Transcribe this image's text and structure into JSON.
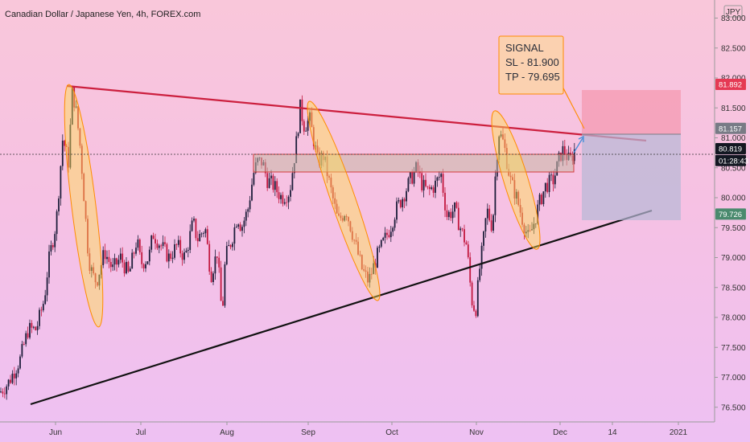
{
  "chart_data": {
    "type": "candlestick",
    "title": "Canadian Dollar / Japanese Yen, 4h, FOREX.com",
    "currency_label": "JPY",
    "y_ticks": [
      "83.000",
      "82.500",
      "82.000",
      "81.500",
      "81.000",
      "80.500",
      "80.000",
      "79.500",
      "79.000",
      "78.500",
      "78.000",
      "77.500",
      "77.000",
      "76.500"
    ],
    "ylim": [
      76.4,
      83.1
    ],
    "x_ticks": [
      "Jun",
      "Jul",
      "Aug",
      "Sep",
      "Oct",
      "Nov",
      "Dec",
      "14",
      "2021"
    ],
    "price_labels": [
      {
        "text": "81.892",
        "value": 81.892,
        "color": "#e53954"
      },
      {
        "text": "81.157",
        "value": 81.157,
        "color": "#787b86"
      },
      {
        "text": "80.819",
        "value": 80.819,
        "color": "#131722"
      },
      {
        "text": "01:28:43",
        "value": 80.62,
        "color": "#131722"
      },
      {
        "text": "79.726",
        "value": 79.726,
        "color": "#4a8a6e"
      }
    ],
    "signal": {
      "lines": [
        "SIGNAL",
        "SL - 81.900",
        "TP - 79.695"
      ]
    },
    "series": [
      {
        "type": "price",
        "path": [
          [
            0,
            76.75
          ],
          [
            10,
            76.9
          ],
          [
            25,
            77.3
          ],
          [
            35,
            77.8
          ],
          [
            45,
            77.8
          ],
          [
            55,
            78.3
          ],
          [
            60,
            78.9
          ],
          [
            70,
            79.6
          ],
          [
            78,
            81.0
          ],
          [
            85,
            80.6
          ],
          [
            90,
            81.8
          ],
          [
            95,
            81.4
          ],
          [
            100,
            80.8
          ],
          [
            105,
            79.9
          ],
          [
            110,
            79.0
          ],
          [
            115,
            78.7
          ],
          [
            120,
            78.6
          ],
          [
            130,
            79.1
          ],
          [
            140,
            78.8
          ],
          [
            150,
            79.0
          ],
          [
            160,
            78.7
          ],
          [
            170,
            79.3
          ],
          [
            175,
            78.9
          ],
          [
            185,
            79.0
          ],
          [
            190,
            79.4
          ],
          [
            200,
            79.2
          ],
          [
            210,
            79.0
          ],
          [
            220,
            79.2
          ],
          [
            230,
            79.0
          ],
          [
            240,
            79.6
          ],
          [
            245,
            79.3
          ],
          [
            255,
            79.5
          ],
          [
            262,
            78.7
          ],
          [
            270,
            79.1
          ],
          [
            276,
            78.0
          ],
          [
            280,
            79.0
          ],
          [
            288,
            79.3
          ],
          [
            295,
            79.7
          ],
          [
            300,
            79.5
          ],
          [
            308,
            79.8
          ],
          [
            315,
            80.4
          ],
          [
            320,
            80.6
          ],
          [
            326,
            80.6
          ],
          [
            332,
            80.3
          ],
          [
            340,
            80.2
          ],
          [
            350,
            80.0
          ],
          [
            360,
            80.1
          ],
          [
            368,
            80.9
          ],
          [
            373,
            81.5
          ],
          [
            378,
            81.2
          ],
          [
            385,
            81.3
          ],
          [
            395,
            80.6
          ],
          [
            402,
            80.7
          ],
          [
            410,
            80.2
          ],
          [
            420,
            79.6
          ],
          [
            430,
            79.8
          ],
          [
            440,
            79.3
          ],
          [
            450,
            78.8
          ],
          [
            458,
            78.6
          ],
          [
            468,
            79.0
          ],
          [
            478,
            79.3
          ],
          [
            485,
            79.5
          ],
          [
            492,
            79.8
          ],
          [
            500,
            80.0
          ],
          [
            510,
            80.3
          ],
          [
            518,
            80.5
          ],
          [
            525,
            80.2
          ],
          [
            532,
            80.1
          ],
          [
            540,
            80.2
          ],
          [
            548,
            80.4
          ],
          [
            555,
            79.7
          ],
          [
            565,
            79.8
          ],
          [
            572,
            79.5
          ],
          [
            580,
            79.2
          ],
          [
            586,
            78.3
          ],
          [
            591,
            78.1
          ],
          [
            596,
            78.8
          ],
          [
            600,
            79.2
          ],
          [
            605,
            79.8
          ],
          [
            612,
            79.5
          ],
          [
            616,
            80.5
          ],
          [
            620,
            81.1
          ],
          [
            626,
            80.9
          ],
          [
            634,
            80.3
          ],
          [
            642,
            80.0
          ],
          [
            650,
            79.6
          ],
          [
            657,
            79.3
          ],
          [
            664,
            79.6
          ],
          [
            670,
            79.9
          ],
          [
            678,
            80.2
          ],
          [
            688,
            80.3
          ],
          [
            696,
            80.7
          ],
          [
            700,
            80.8
          ],
          [
            708,
            80.6
          ],
          [
            714,
            80.8
          ]
        ]
      }
    ]
  }
}
